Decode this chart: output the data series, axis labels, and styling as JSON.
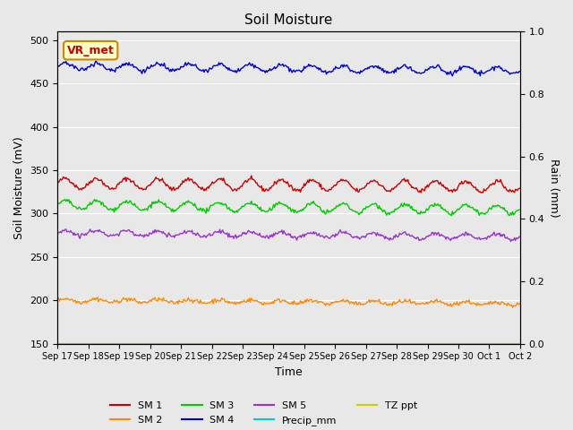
{
  "title": "Soil Moisture",
  "ylabel_left": "Soil Moisture (mV)",
  "ylabel_right": "Rain (mm)",
  "xlabel": "Time",
  "xlim_days": [
    0,
    15
  ],
  "ylim_left": [
    150,
    510
  ],
  "ylim_right": [
    0.0,
    1.0
  ],
  "yticks_left": [
    150,
    200,
    250,
    300,
    350,
    400,
    450,
    500
  ],
  "yticks_right": [
    0.0,
    0.2,
    0.4,
    0.6,
    0.8,
    1.0
  ],
  "xtick_positions": [
    0,
    1,
    2,
    3,
    4,
    5,
    6,
    7,
    8,
    9,
    10,
    11,
    12,
    13,
    14,
    15
  ],
  "xtick_labels": [
    "Sep 17",
    "Sep 18",
    "Sep 19",
    "Sep 20",
    "Sep 21",
    "Sep 22",
    "Sep 23",
    "Sep 24",
    "Sep 25",
    "Sep 26",
    "Sep 27",
    "Sep 28",
    "Sep 29",
    "Sep 30",
    "Oct 1",
    "Oct 2"
  ],
  "background_color": "#e8e8e8",
  "plot_bg_color": "#e8e8e8",
  "sm1_color": "#cc0000",
  "sm2_color": "#ff8800",
  "sm3_color": "#00cc00",
  "sm4_color": "#0000cc",
  "sm5_color": "#9933cc",
  "precip_color": "#00cccc",
  "tz_ppt_color": "#cccc00",
  "sm1_mean": 335,
  "sm1_amp": 6,
  "sm1_trend": -4,
  "sm2_mean": 200,
  "sm2_amp": 2,
  "sm2_trend": -4,
  "sm3_mean": 310,
  "sm3_amp": 5,
  "sm3_trend": -6,
  "sm4_mean": 470,
  "sm4_amp": 4,
  "sm4_trend": -5,
  "sm5_mean": 278,
  "sm5_amp": 3,
  "sm5_trend": -5,
  "tz_ppt_value": 150,
  "vr_met_box_color": "#ffffcc",
  "vr_met_text_color": "#cc0000",
  "vr_met_border_color": "#cc8800",
  "n_points": 500,
  "days": 15
}
